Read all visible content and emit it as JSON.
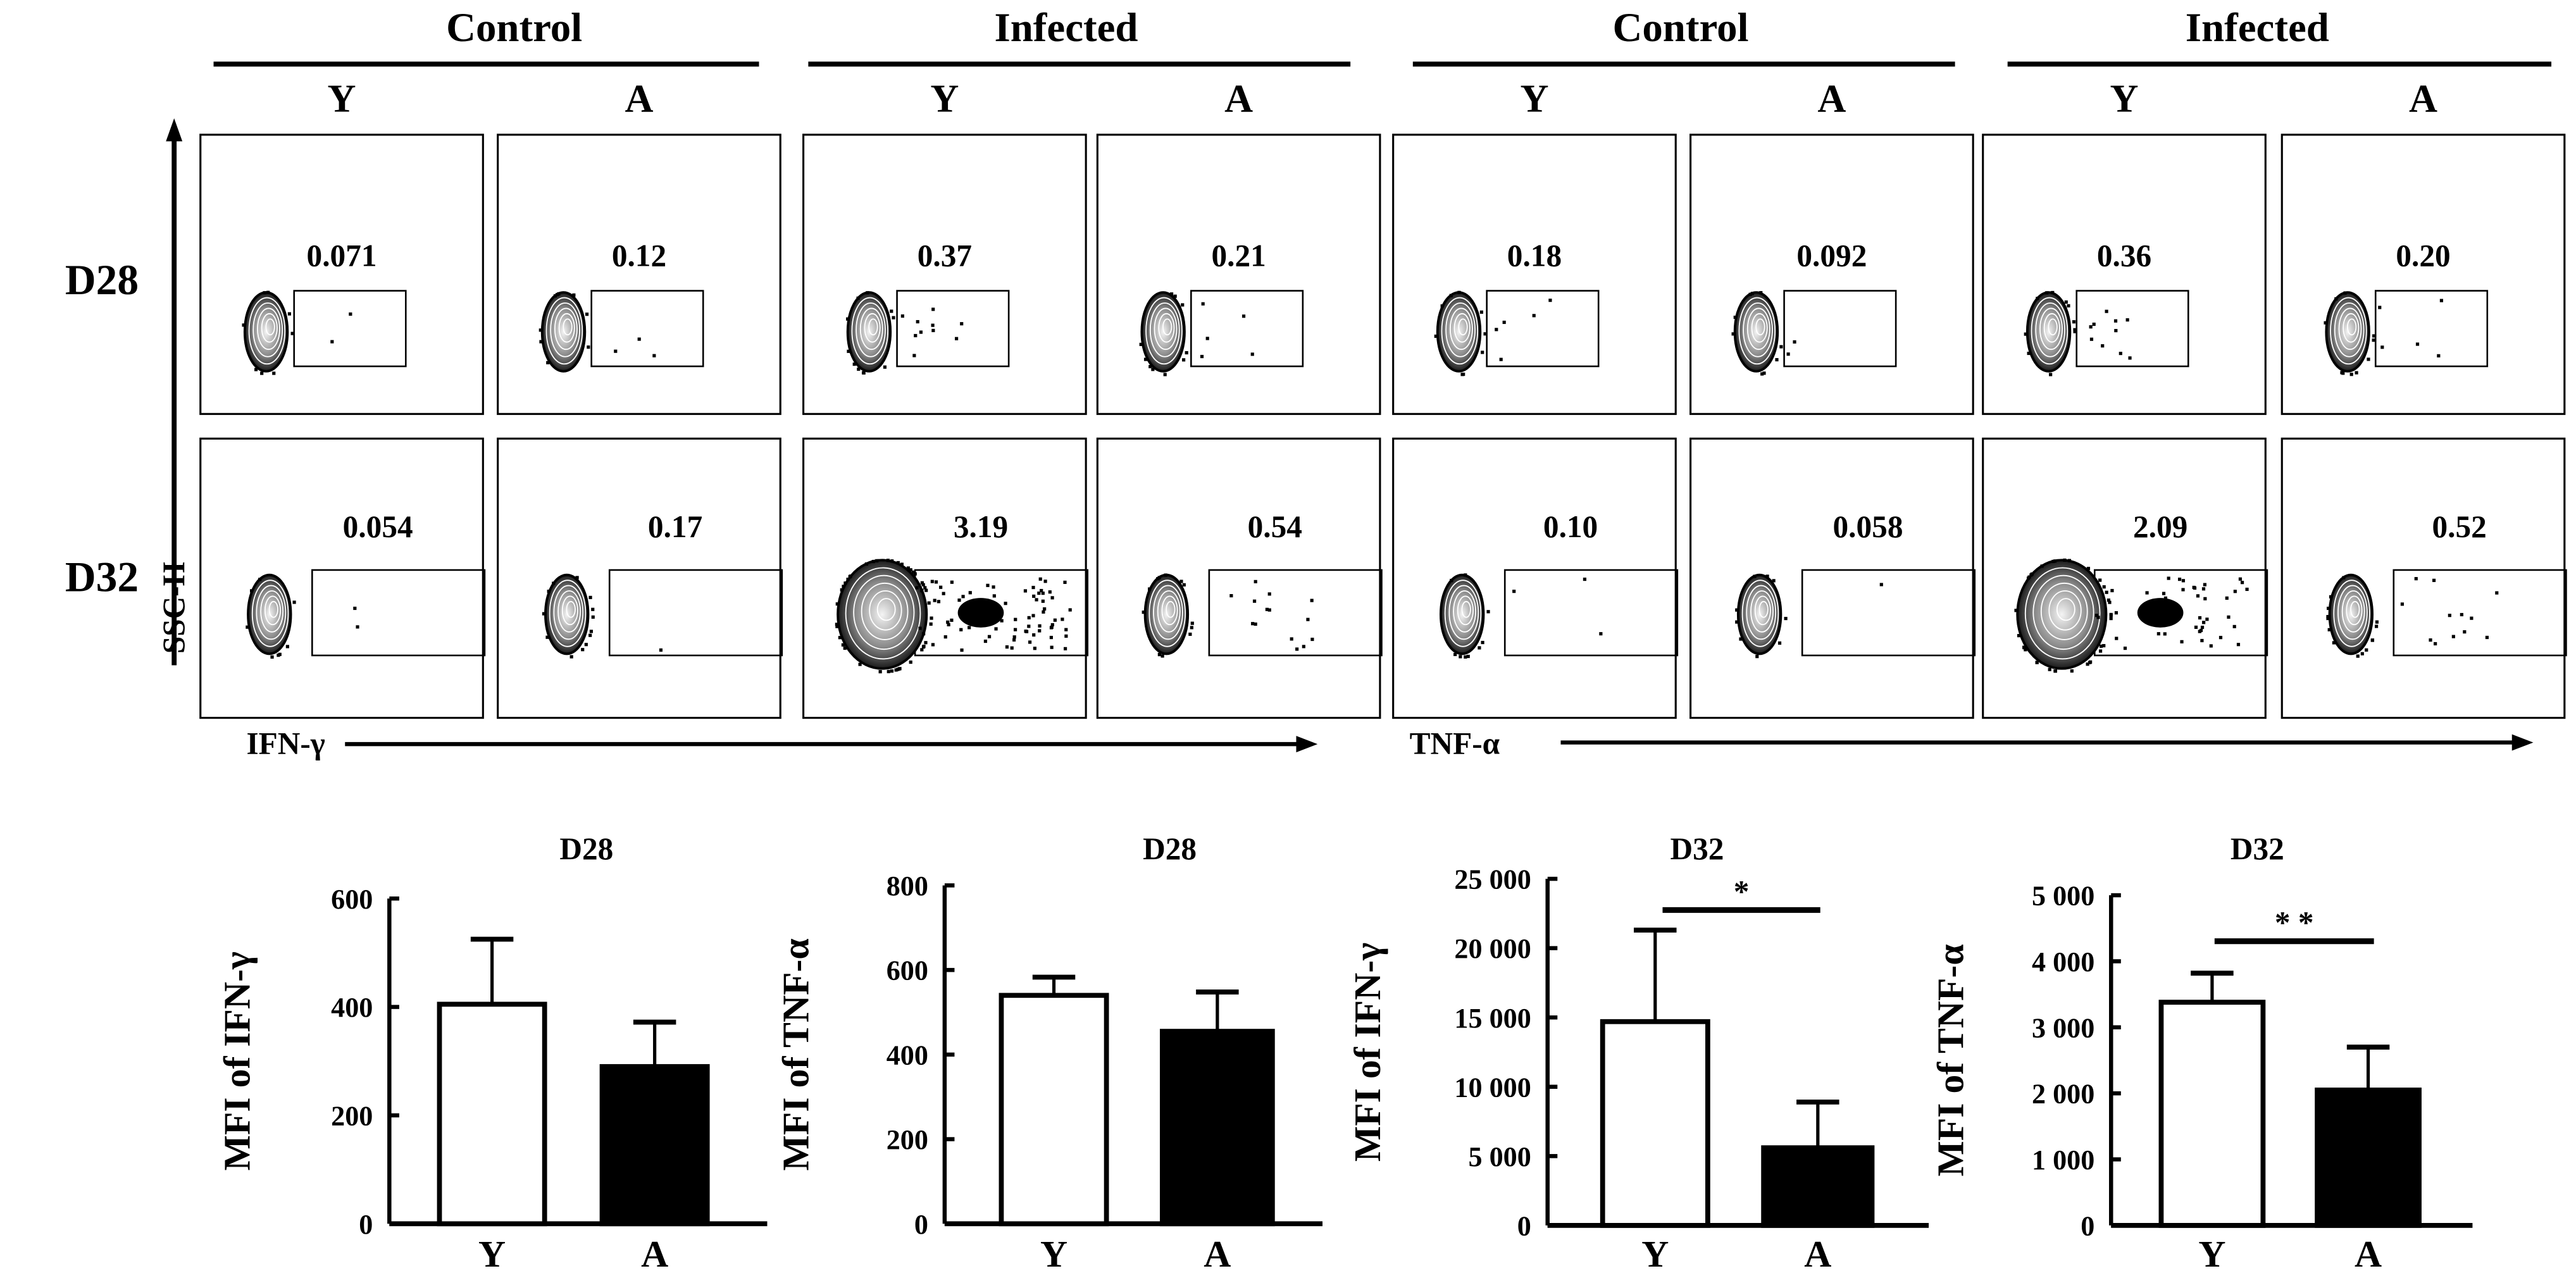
{
  "figure": {
    "headers": [
      "Control",
      "Infected",
      "Control",
      "Infected"
    ],
    "columns": [
      "Y",
      "A",
      "Y",
      "A",
      "Y",
      "A",
      "Y",
      "A"
    ],
    "rows": [
      "D28",
      "D32"
    ],
    "y_axis_label": "SSC-H",
    "x_axis_labels": [
      "IFN-γ",
      "TNF-α"
    ]
  },
  "flow_panels": {
    "D28": [
      "0.071",
      "0.12",
      "0.37",
      "0.21",
      "0.18",
      "0.092",
      "0.36",
      "0.20"
    ],
    "D32": [
      "0.054",
      "0.17",
      "3.19",
      "0.54",
      "0.10",
      "0.058",
      "2.09",
      "0.52"
    ]
  },
  "colors": {
    "Y": "#ffffff",
    "A": "#000000",
    "stroke": "#000000"
  },
  "chart_data": [
    {
      "type": "bar",
      "title": "D28",
      "ylabel": "MFI of IFN-γ",
      "categories": [
        "Y",
        "A"
      ],
      "values": [
        405,
        290
      ],
      "errors": [
        120,
        82
      ],
      "ylim": [
        0,
        600
      ],
      "yticks": [
        0,
        200,
        400,
        600
      ],
      "ytick_labels": [
        "0",
        "200",
        "400",
        "600"
      ],
      "significance": ""
    },
    {
      "type": "bar",
      "title": "D28",
      "ylabel": "MFI of TNF-α",
      "categories": [
        "Y",
        "A"
      ],
      "values": [
        540,
        455
      ],
      "errors": [
        43,
        93
      ],
      "ylim": [
        0,
        800
      ],
      "yticks": [
        0,
        200,
        400,
        600,
        800
      ],
      "ytick_labels": [
        "0",
        "200",
        "400",
        "600",
        "800"
      ],
      "significance": ""
    },
    {
      "type": "bar",
      "title": "D32",
      "ylabel": "MFI of IFN-γ",
      "categories": [
        "Y",
        "A"
      ],
      "values": [
        14700,
        5600
      ],
      "errors": [
        6600,
        3300
      ],
      "ylim": [
        0,
        25000
      ],
      "yticks": [
        0,
        5000,
        10000,
        15000,
        20000,
        25000
      ],
      "ytick_labels": [
        "0",
        "5 000",
        "10 000",
        "15 000",
        "20 000",
        "25 000"
      ],
      "significance": "*"
    },
    {
      "type": "bar",
      "title": "D32",
      "ylabel": "MFI of TNF-α",
      "categories": [
        "Y",
        "A"
      ],
      "values": [
        3380,
        2050
      ],
      "errors": [
        440,
        650
      ],
      "ylim": [
        0,
        5000
      ],
      "yticks": [
        0,
        1000,
        2000,
        3000,
        4000,
        5000
      ],
      "ytick_labels": [
        "0",
        "1 000",
        "2 000",
        "3 000",
        "4 000",
        "5 000"
      ],
      "significance": "* *"
    }
  ]
}
